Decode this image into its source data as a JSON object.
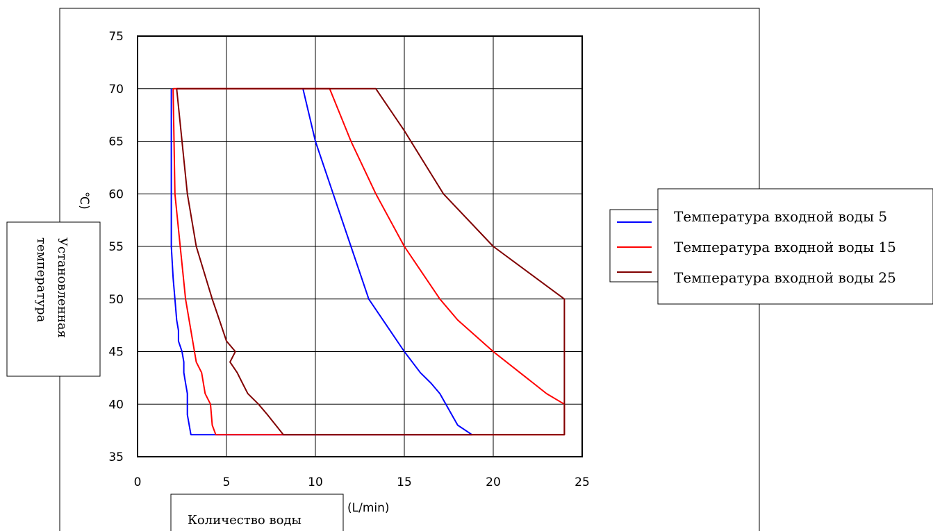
{
  "chart_data": {
    "type": "line",
    "xlim": [
      0,
      25
    ],
    "ylim": [
      35,
      75
    ],
    "x_ticks": [
      "0",
      "5",
      "10",
      "15",
      "20",
      "25"
    ],
    "y_ticks": [
      "35",
      "40",
      "45",
      "50",
      "55",
      "60",
      "65",
      "70",
      "75"
    ],
    "grid": true,
    "ylabel": "Установленная температура",
    "ylabel_unit": "℃)",
    "xlabel": "Количество воды",
    "xlabel_unit": "(L/min)",
    "legend_position": "right",
    "series": [
      {
        "name": "Температура входной воды 5",
        "color": "#0000ff",
        "points": [
          [
            1.9,
            70
          ],
          [
            1.9,
            60
          ],
          [
            1.9,
            55
          ],
          [
            2.0,
            52
          ],
          [
            2.1,
            50
          ],
          [
            2.2,
            48
          ],
          [
            2.3,
            47
          ],
          [
            2.3,
            46
          ],
          [
            2.5,
            45
          ],
          [
            2.6,
            44
          ],
          [
            2.6,
            43
          ],
          [
            2.7,
            42
          ],
          [
            2.8,
            41
          ],
          [
            2.8,
            40
          ],
          [
            2.8,
            39
          ],
          [
            3.0,
            37.1
          ],
          [
            18.8,
            37.1
          ],
          [
            18.0,
            38
          ],
          [
            17.0,
            41
          ],
          [
            16.5,
            42
          ],
          [
            15.9,
            43
          ],
          [
            15.0,
            45
          ],
          [
            14.2,
            47
          ],
          [
            13.0,
            50
          ],
          [
            12.0,
            55
          ],
          [
            11.0,
            60
          ],
          [
            10.0,
            65
          ],
          [
            9.3,
            70
          ]
        ]
      },
      {
        "name": "Температура входной воды 15",
        "color": "#ff0000",
        "points": [
          [
            2.0,
            70
          ],
          [
            2.1,
            60
          ],
          [
            2.4,
            55
          ],
          [
            2.7,
            50
          ],
          [
            3.0,
            47
          ],
          [
            3.3,
            44
          ],
          [
            3.6,
            43
          ],
          [
            3.8,
            41
          ],
          [
            4.1,
            40
          ],
          [
            4.2,
            38
          ],
          [
            4.4,
            37.1
          ],
          [
            24.0,
            37.1
          ],
          [
            24.0,
            40
          ],
          [
            23.0,
            41
          ],
          [
            21.5,
            43
          ],
          [
            20.0,
            45
          ],
          [
            19.0,
            46.5
          ],
          [
            18.0,
            48
          ],
          [
            17.0,
            50
          ],
          [
            15.0,
            55
          ],
          [
            13.4,
            60
          ],
          [
            12.0,
            65
          ],
          [
            10.8,
            70
          ],
          [
            2.0,
            70
          ]
        ]
      },
      {
        "name": "Температура входной воды 25",
        "color": "#800000",
        "points": [
          [
            2.2,
            70
          ],
          [
            2.8,
            60
          ],
          [
            3.3,
            55
          ],
          [
            4.2,
            50
          ],
          [
            4.6,
            48
          ],
          [
            5.0,
            46
          ],
          [
            5.5,
            45
          ],
          [
            5.2,
            44
          ],
          [
            5.6,
            43
          ],
          [
            5.9,
            42
          ],
          [
            6.2,
            41
          ],
          [
            6.8,
            40
          ],
          [
            7.3,
            39
          ],
          [
            8.2,
            37.1
          ],
          [
            24.0,
            37.1
          ],
          [
            24.0,
            50
          ],
          [
            20.0,
            55
          ],
          [
            17.2,
            60
          ],
          [
            15.0,
            66
          ],
          [
            13.4,
            70
          ],
          [
            2.2,
            70
          ]
        ]
      }
    ]
  }
}
